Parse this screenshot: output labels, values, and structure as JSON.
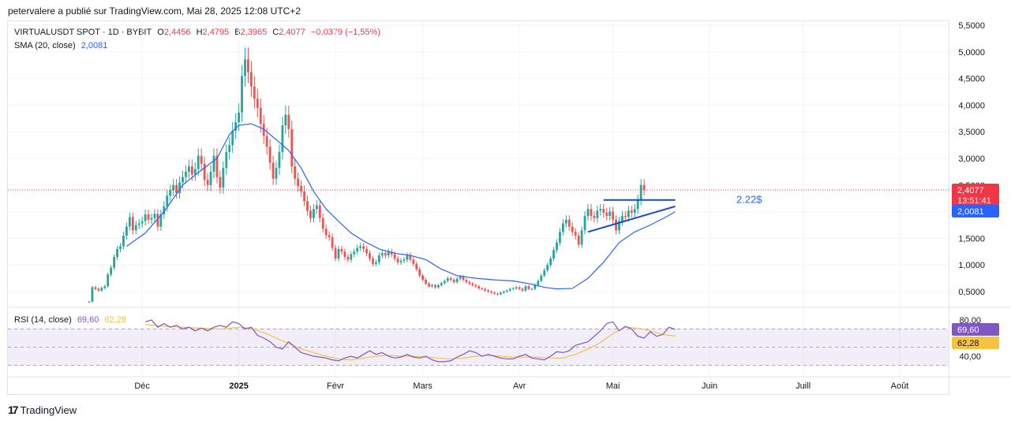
{
  "attribution": "petervalere a publié sur TradingView.com, Mai 28, 2025 12:08 UTC+2",
  "legend": {
    "symbol": "VIRTUALUSDT SPOT · 1D · BYBIT",
    "o_label": "O",
    "o_value": "2,4456",
    "h_label": "H",
    "h_value": "2,4795",
    "b_label": "B",
    "b_value": "2,3965",
    "c_label": "C",
    "c_value": "2,4077",
    "change": "−0,0379 (−1,55%)",
    "sma_label": "SMA (20, close)",
    "sma_value": "2,0081",
    "rsi_label": "RSI (14, close)",
    "rsi_value": "69,60",
    "rsi_ma_value": "62,28"
  },
  "badges": {
    "price": "2,4077",
    "countdown": "13:51:41",
    "sma": "2,0081",
    "rsi": "69,60",
    "rsi_ma": "62,28"
  },
  "annotation": "2.22$",
  "footer": {
    "brand": "TradingView",
    "logo_glyph": "17"
  },
  "colors": {
    "up": "#26a69a",
    "down": "#ef5350",
    "sma": "#2962ff",
    "rsi": "#7e57c2",
    "rsi_ma": "#f5c242",
    "price_badge": "#f23645"
  },
  "chart_data": {
    "type": "candlestick",
    "title": "VIRTUALUSDT SPOT · 1D · BYBIT",
    "price_axis": {
      "ylim": [
        0.25,
        5.5
      ],
      "ticks": [
        0.5,
        1.0,
        1.5,
        2.0,
        2.5,
        3.0,
        3.5,
        4.0,
        4.5,
        5.0,
        5.5
      ],
      "tick_labels": [
        "0,5000",
        "1,0000",
        "1,5000",
        "2,0000",
        "2,5000",
        "3,0000",
        "3,5000",
        "4,0000",
        "4,5000",
        "5,0000",
        "5,5000"
      ]
    },
    "time_axis": {
      "labels": [
        "Déc",
        "2025",
        "Févr",
        "Mars",
        "Avr",
        "Mai",
        "Juin",
        "Juill",
        "Août"
      ],
      "label_day_index": [
        17,
        48,
        79,
        107,
        138,
        168,
        199,
        229,
        260
      ]
    },
    "last_price": 2.4077,
    "resistance_level": 2.22,
    "resistance_days": [
      165,
      188
    ],
    "trendline": {
      "from": [
        160,
        1.62
      ],
      "to": [
        188,
        2.1
      ]
    },
    "closes": [
      0.31,
      0.58,
      0.55,
      0.52,
      0.57,
      0.6,
      0.82,
      0.95,
      1.15,
      1.3,
      1.35,
      1.55,
      1.72,
      1.9,
      1.65,
      1.75,
      1.78,
      1.82,
      1.95,
      1.85,
      1.88,
      1.96,
      1.72,
      1.95,
      2.1,
      2.3,
      2.4,
      2.5,
      2.35,
      2.55,
      2.65,
      2.75,
      2.85,
      2.7,
      2.8,
      3.05,
      2.9,
      2.6,
      2.5,
      2.75,
      3.05,
      2.65,
      2.45,
      2.82,
      3.12,
      3.25,
      3.52,
      3.68,
      3.86,
      4.55,
      4.86,
      4.62,
      4.35,
      4.12,
      3.95,
      3.65,
      3.42,
      3.22,
      2.92,
      2.62,
      2.82,
      3.12,
      3.62,
      3.82,
      3.55,
      2.85,
      2.62,
      2.48,
      2.38,
      2.2,
      2.02,
      1.88,
      2.05,
      2.12,
      1.88,
      1.68,
      1.56,
      1.52,
      1.32,
      1.12,
      1.3,
      1.25,
      1.15,
      1.1,
      1.2,
      1.25,
      1.32,
      1.35,
      1.3,
      1.22,
      1.12,
      1.02,
      1.05,
      1.18,
      1.22,
      1.18,
      1.25,
      1.2,
      1.12,
      1.05,
      1.08,
      1.1,
      1.18,
      1.1,
      1.02,
      0.92,
      0.8,
      0.72,
      0.65,
      0.6,
      0.62,
      0.58,
      0.62,
      0.66,
      0.7,
      0.75,
      0.72,
      0.68,
      0.74,
      0.78,
      0.72,
      0.68,
      0.65,
      0.62,
      0.6,
      0.56,
      0.55,
      0.52,
      0.5,
      0.48,
      0.46,
      0.45,
      0.48,
      0.5,
      0.52,
      0.55,
      0.56,
      0.58,
      0.55,
      0.52,
      0.6,
      0.55,
      0.55,
      0.62,
      0.7,
      0.8,
      0.9,
      1.0,
      1.12,
      1.28,
      1.42,
      1.62,
      1.78,
      1.85,
      1.72,
      1.62,
      1.55,
      1.38,
      1.65,
      1.92,
      2.05,
      1.92,
      1.88,
      2.02,
      2.05,
      1.98,
      1.92,
      2.0,
      1.85,
      1.65,
      1.82,
      1.92,
      1.9,
      2.02,
      1.98,
      2.05,
      2.22,
      2.5,
      2.41
    ],
    "sma20": {
      "points": [
        [
          12,
          1.35
        ],
        [
          18,
          1.6
        ],
        [
          24,
          2.0
        ],
        [
          30,
          2.5
        ],
        [
          36,
          2.78
        ],
        [
          41,
          3.0
        ],
        [
          45,
          3.45
        ],
        [
          48,
          3.62
        ],
        [
          52,
          3.65
        ],
        [
          56,
          3.55
        ],
        [
          60,
          3.35
        ],
        [
          64,
          3.15
        ],
        [
          68,
          2.82
        ],
        [
          72,
          2.38
        ],
        [
          76,
          2.05
        ],
        [
          80,
          1.82
        ],
        [
          84,
          1.6
        ],
        [
          88,
          1.45
        ],
        [
          93,
          1.3
        ],
        [
          98,
          1.22
        ],
        [
          103,
          1.18
        ],
        [
          108,
          1.1
        ],
        [
          113,
          0.92
        ],
        [
          118,
          0.8
        ],
        [
          124,
          0.75
        ],
        [
          130,
          0.72
        ],
        [
          136,
          0.7
        ],
        [
          142,
          0.64
        ],
        [
          146,
          0.58
        ],
        [
          150,
          0.55
        ],
        [
          155,
          0.56
        ],
        [
          160,
          0.75
        ],
        [
          165,
          1.05
        ],
        [
          170,
          1.42
        ],
        [
          175,
          1.62
        ],
        [
          180,
          1.75
        ],
        [
          185,
          1.9
        ],
        [
          188,
          2.0
        ]
      ]
    },
    "rsi": {
      "ylim": [
        20,
        90
      ],
      "ticks": [
        40,
        80
      ],
      "tick_labels": [
        "40,00",
        "80,00"
      ],
      "bands": [
        30,
        50,
        70
      ],
      "rsi_points": [
        [
          18,
          78
        ],
        [
          20,
          80
        ],
        [
          22,
          72
        ],
        [
          24,
          76
        ],
        [
          26,
          72
        ],
        [
          28,
          74
        ],
        [
          30,
          70
        ],
        [
          32,
          72
        ],
        [
          34,
          68
        ],
        [
          36,
          71
        ],
        [
          38,
          68
        ],
        [
          40,
          72
        ],
        [
          42,
          74
        ],
        [
          44,
          72
        ],
        [
          46,
          78
        ],
        [
          48,
          76
        ],
        [
          50,
          70
        ],
        [
          52,
          72
        ],
        [
          54,
          63
        ],
        [
          56,
          60
        ],
        [
          58,
          56
        ],
        [
          60,
          50
        ],
        [
          62,
          48
        ],
        [
          64,
          56
        ],
        [
          66,
          50
        ],
        [
          68,
          44
        ],
        [
          70,
          42
        ],
        [
          72,
          40
        ],
        [
          74,
          39
        ],
        [
          76,
          38
        ],
        [
          78,
          36
        ],
        [
          80,
          35
        ],
        [
          82,
          38
        ],
        [
          84,
          40
        ],
        [
          86,
          38
        ],
        [
          88,
          42
        ],
        [
          90,
          46
        ],
        [
          92,
          42
        ],
        [
          94,
          44
        ],
        [
          96,
          40
        ],
        [
          98,
          38
        ],
        [
          100,
          39
        ],
        [
          102,
          42
        ],
        [
          104,
          39
        ],
        [
          106,
          38
        ],
        [
          108,
          40
        ],
        [
          110,
          36
        ],
        [
          112,
          34
        ],
        [
          114,
          34
        ],
        [
          116,
          35
        ],
        [
          118,
          39
        ],
        [
          120,
          42
        ],
        [
          122,
          46
        ],
        [
          124,
          44
        ],
        [
          126,
          40
        ],
        [
          128,
          42
        ],
        [
          130,
          40
        ],
        [
          132,
          38
        ],
        [
          134,
          37
        ],
        [
          136,
          37
        ],
        [
          138,
          40
        ],
        [
          140,
          42
        ],
        [
          142,
          38
        ],
        [
          144,
          37
        ],
        [
          146,
          36
        ],
        [
          148,
          40
        ],
        [
          150,
          45
        ],
        [
          152,
          44
        ],
        [
          154,
          46
        ],
        [
          156,
          52
        ],
        [
          158,
          54
        ],
        [
          160,
          56
        ],
        [
          162,
          62
        ],
        [
          164,
          68
        ],
        [
          166,
          76
        ],
        [
          168,
          78
        ],
        [
          170,
          68
        ],
        [
          172,
          73
        ],
        [
          174,
          70
        ],
        [
          176,
          62
        ],
        [
          178,
          60
        ],
        [
          180,
          67
        ],
        [
          182,
          62
        ],
        [
          184,
          64
        ],
        [
          186,
          72
        ],
        [
          188,
          69.6
        ]
      ],
      "ma_points": [
        [
          18,
          75
        ],
        [
          24,
          73
        ],
        [
          30,
          72
        ],
        [
          36,
          71
        ],
        [
          42,
          70
        ],
        [
          48,
          72
        ],
        [
          52,
          71
        ],
        [
          56,
          66
        ],
        [
          60,
          60
        ],
        [
          64,
          54
        ],
        [
          68,
          48
        ],
        [
          72,
          44
        ],
        [
          76,
          40
        ],
        [
          80,
          37
        ],
        [
          84,
          36
        ],
        [
          88,
          38
        ],
        [
          92,
          40
        ],
        [
          96,
          41
        ],
        [
          100,
          40
        ],
        [
          104,
          40
        ],
        [
          108,
          39
        ],
        [
          112,
          38
        ],
        [
          116,
          37
        ],
        [
          120,
          38
        ],
        [
          124,
          40
        ],
        [
          128,
          41
        ],
        [
          132,
          40
        ],
        [
          136,
          39
        ],
        [
          140,
          39
        ],
        [
          144,
          39
        ],
        [
          148,
          38
        ],
        [
          152,
          38
        ],
        [
          156,
          42
        ],
        [
          160,
          48
        ],
        [
          164,
          55
        ],
        [
          168,
          65
        ],
        [
          172,
          72
        ],
        [
          176,
          71
        ],
        [
          180,
          68
        ],
        [
          184,
          64
        ],
        [
          188,
          62.3
        ]
      ]
    }
  }
}
